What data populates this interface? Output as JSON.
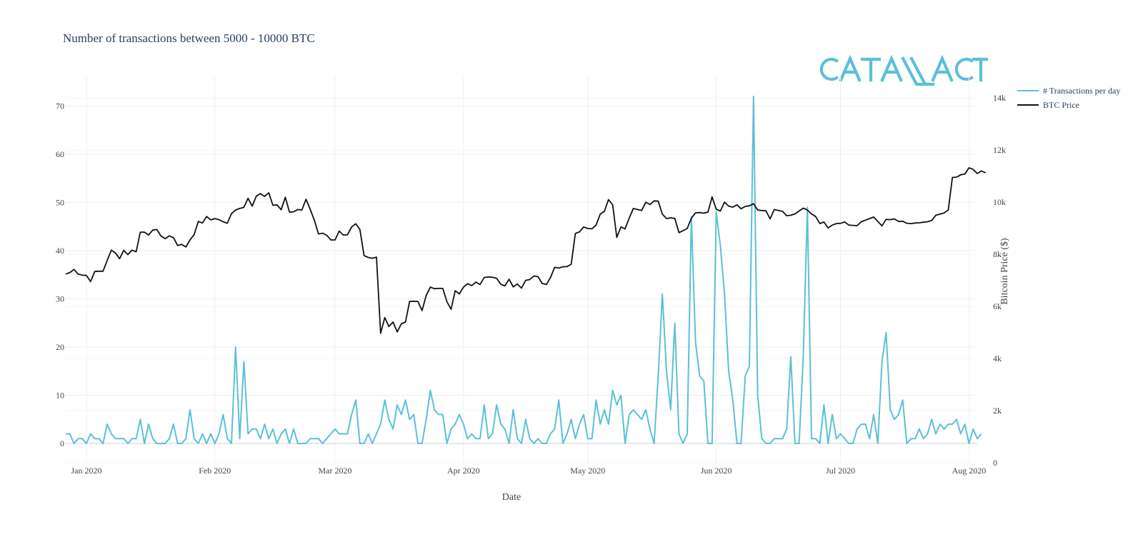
{
  "chart_data": {
    "type": "line",
    "title": "Number of transactions between 5000 - 10000 BTC",
    "xlabel": "Date",
    "ylabel_left": "",
    "ylabel_right": "Bitcoin Price ($)",
    "x_range": [
      "2019-12-27",
      "2020-08-03"
    ],
    "ylim_left": [
      -4,
      76
    ],
    "ylim_right": [
      0,
      14800
    ],
    "x_ticks": [
      {
        "date": "2020-01-01",
        "label": "Jan 2020"
      },
      {
        "date": "2020-02-01",
        "label": "Feb 2020"
      },
      {
        "date": "2020-03-01",
        "label": "Mar 2020"
      },
      {
        "date": "2020-04-01",
        "label": "Apr 2020"
      },
      {
        "date": "2020-05-01",
        "label": "May 2020"
      },
      {
        "date": "2020-06-01",
        "label": "Jun 2020"
      },
      {
        "date": "2020-07-01",
        "label": "Jul 2020"
      },
      {
        "date": "2020-08-01",
        "label": "Aug 2020"
      }
    ],
    "y_left_ticks": [
      {
        "value": 0,
        "label": "0"
      },
      {
        "value": 10,
        "label": "10"
      },
      {
        "value": 20,
        "label": "20"
      },
      {
        "value": 30,
        "label": "30"
      },
      {
        "value": 40,
        "label": "40"
      },
      {
        "value": 50,
        "label": "50"
      },
      {
        "value": 60,
        "label": "60"
      },
      {
        "value": 70,
        "label": "70"
      }
    ],
    "y_right_ticks": [
      {
        "value": 0,
        "label": "0"
      },
      {
        "value": 2000,
        "label": "2k"
      },
      {
        "value": 4000,
        "label": "4k"
      },
      {
        "value": 6000,
        "label": "6k"
      },
      {
        "value": 8000,
        "label": "8k"
      },
      {
        "value": 10000,
        "label": "10k"
      },
      {
        "value": 12000,
        "label": "12k"
      },
      {
        "value": 14000,
        "label": "14k"
      }
    ],
    "series": [
      {
        "name": "# Transactions per day",
        "axis": "left",
        "color": "#5bc0d8",
        "start_date": "2019-12-27",
        "values": [
          2,
          2,
          0,
          1,
          1,
          0,
          2,
          1,
          1,
          0,
          4,
          2,
          1,
          1,
          1,
          0,
          1,
          1,
          5,
          0,
          4,
          1,
          0,
          0,
          0,
          1,
          4,
          0,
          0,
          1,
          7,
          1,
          0,
          2,
          0,
          2,
          0,
          2,
          6,
          1,
          0,
          20,
          1,
          17,
          2,
          3,
          3,
          1,
          4,
          1,
          3,
          0,
          2,
          3,
          0,
          3,
          0,
          0,
          0,
          1,
          1,
          1,
          0,
          1,
          2,
          3,
          2,
          2,
          2,
          6,
          9,
          0,
          0,
          2,
          0,
          2,
          4,
          9,
          5,
          3,
          8,
          6,
          9,
          5,
          6,
          0,
          0,
          5,
          11,
          7,
          6,
          6,
          0,
          3,
          4,
          6,
          4,
          1,
          2,
          1,
          1,
          8,
          1,
          2,
          8,
          4,
          3,
          0,
          7,
          1,
          0,
          5,
          1,
          0,
          1,
          0,
          0,
          2,
          3,
          9,
          0,
          2,
          5,
          1,
          4,
          6,
          1,
          1,
          9,
          4,
          7,
          4,
          11,
          8,
          10,
          0,
          6,
          7,
          6,
          5,
          7,
          3,
          0,
          14,
          31,
          15,
          7,
          25,
          2,
          0,
          2,
          47,
          21,
          14,
          13,
          0,
          0,
          48,
          41,
          31,
          15,
          9,
          0,
          0,
          14,
          16,
          72,
          10,
          1,
          0,
          0,
          1,
          1,
          1,
          3,
          18,
          0,
          0,
          18,
          49,
          1,
          1,
          0,
          8,
          0,
          6,
          1,
          2,
          1,
          0,
          0,
          3,
          4,
          4,
          1,
          6,
          0,
          17,
          23,
          7,
          5,
          6,
          9,
          0,
          1,
          1,
          3,
          1,
          2,
          5,
          2,
          4,
          3,
          4,
          4,
          5,
          2,
          4,
          0,
          3,
          1,
          2
        ],
        "note": "one value per day from start_date"
      },
      {
        "name": "BTC Price",
        "axis": "right",
        "color": "#111111",
        "start_date": "2019-12-27",
        "values": [
          7240,
          7300,
          7420,
          7240,
          7200,
          7190,
          6950,
          7340,
          7350,
          7350,
          7760,
          8160,
          8050,
          7830,
          8150,
          7990,
          8160,
          8100,
          8850,
          8850,
          8740,
          8930,
          8950,
          8700,
          8600,
          8710,
          8640,
          8340,
          8380,
          8280,
          8550,
          8760,
          9260,
          9200,
          9450,
          9320,
          9370,
          9330,
          9250,
          9190,
          9560,
          9700,
          9760,
          9800,
          10150,
          9850,
          10230,
          10330,
          10220,
          10360,
          9880,
          9900,
          9710,
          10190,
          9620,
          9630,
          9720,
          9700,
          10110,
          9730,
          9310,
          8780,
          8810,
          8730,
          8550,
          8550,
          8890,
          8740,
          8750,
          9050,
          9170,
          8950,
          7950,
          7880,
          7850,
          7890,
          4970,
          5570,
          5230,
          5400,
          5020,
          5330,
          5400,
          6190,
          6200,
          6190,
          5840,
          6420,
          6740,
          6680,
          6690,
          6690,
          6180,
          5890,
          6600,
          6480,
          6740,
          6870,
          6800,
          6930,
          6840,
          7110,
          7130,
          7120,
          7080,
          6850,
          6790,
          7040,
          6750,
          6860,
          6700,
          7000,
          7030,
          7170,
          7140,
          6880,
          6840,
          7110,
          7500,
          7470,
          7520,
          7530,
          7620,
          8800,
          8860,
          9050,
          8990,
          8980,
          9120,
          9540,
          9650,
          10100,
          9900,
          8650,
          9050,
          8980,
          9390,
          9760,
          9720,
          9680,
          10000,
          9910,
          10050,
          10040,
          9540,
          9370,
          9400,
          9380,
          8830,
          8910,
          8990,
          9390,
          9590,
          9600,
          9580,
          9620,
          10200,
          9730,
          9660,
          10000,
          9850,
          9810,
          9900,
          9750,
          9840,
          9860,
          9940,
          9700,
          9680,
          9670,
          9360,
          9720,
          9680,
          9650,
          9480,
          9500,
          9550,
          9660,
          9770,
          9700,
          9550,
          9450,
          9180,
          9240,
          9010,
          9120,
          9180,
          9190,
          9240,
          9120,
          9110,
          9100,
          9250,
          9310,
          9370,
          9430,
          9260,
          9090,
          9340,
          9330,
          9360,
          9260,
          9270,
          9190,
          9180,
          9200,
          9210,
          9230,
          9250,
          9300,
          9500,
          9540,
          9590,
          9700,
          10950,
          10960,
          11050,
          11080,
          11320,
          11260,
          11100,
          11200,
          11130
        ]
      }
    ]
  },
  "branding": {
    "logo_text": "CATALLACT",
    "logo_color": "#5bc0d8"
  },
  "legend": {
    "entries": [
      {
        "label": "# Transactions per day",
        "color": "#5bc0d8"
      },
      {
        "label": "BTC Price",
        "color": "#111111"
      }
    ]
  }
}
